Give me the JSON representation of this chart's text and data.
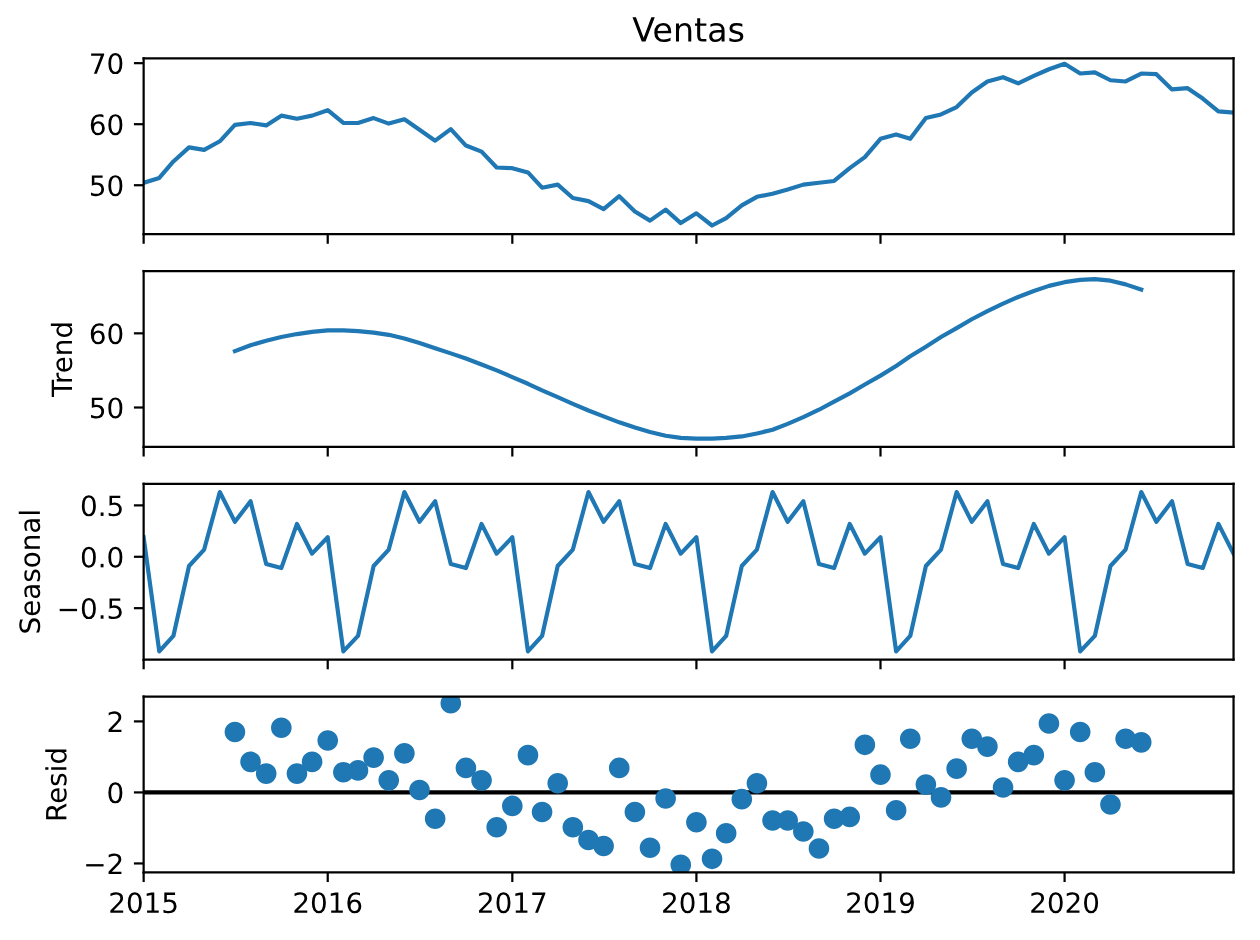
{
  "chart_data": [
    {
      "type": "line",
      "title": "Ventas",
      "xlim": [
        "2015-01",
        "2020-12"
      ],
      "xticks": [
        {
          "value": "2015",
          "label": null
        },
        {
          "value": "2016",
          "label": null
        },
        {
          "value": "2017",
          "label": null
        },
        {
          "value": "2018",
          "label": null
        },
        {
          "value": "2019",
          "label": null
        },
        {
          "value": "2020",
          "label": null
        }
      ],
      "ylim": [
        42.0,
        70.8
      ],
      "yticks": [
        50,
        60,
        70
      ],
      "tick_labels": "y",
      "series": [
        {
          "color": "#1f77b4",
          "x": [
            "2015-01",
            "2015-02",
            "2015-03",
            "2015-04",
            "2015-05",
            "2015-06",
            "2015-07",
            "2015-08",
            "2015-09",
            "2015-10",
            "2015-11",
            "2015-12",
            "2016-01",
            "2016-02",
            "2016-03",
            "2016-04",
            "2016-05",
            "2016-06",
            "2016-07",
            "2016-08",
            "2016-09",
            "2016-10",
            "2016-11",
            "2016-12",
            "2017-01",
            "2017-02",
            "2017-03",
            "2017-04",
            "2017-05",
            "2017-06",
            "2017-07",
            "2017-08",
            "2017-09",
            "2017-10",
            "2017-11",
            "2017-12",
            "2018-01",
            "2018-02",
            "2018-03",
            "2018-04",
            "2018-05",
            "2018-06",
            "2018-07",
            "2018-08",
            "2018-09",
            "2018-10",
            "2018-11",
            "2018-12",
            "2019-01",
            "2019-02",
            "2019-03",
            "2019-04",
            "2019-05",
            "2019-06",
            "2019-07",
            "2019-08",
            "2019-09",
            "2019-10",
            "2019-11",
            "2019-12",
            "2020-01",
            "2020-02",
            "2020-03",
            "2020-04",
            "2020-05",
            "2020-06",
            "2020-07",
            "2020-08",
            "2020-09",
            "2020-10",
            "2020-11",
            "2020-12"
          ],
          "values": [
            50.4,
            51.2,
            53.9,
            56.2,
            55.8,
            57.2,
            59.9,
            60.2,
            59.8,
            61.4,
            60.9,
            61.4,
            62.3,
            60.2,
            60.2,
            61.0,
            60.1,
            60.8,
            59.1,
            57.3,
            59.2,
            56.5,
            55.5,
            52.9,
            52.8,
            52.1,
            49.6,
            50.1,
            47.9,
            47.4,
            46.1,
            48.2,
            45.7,
            44.2,
            46.0,
            43.8,
            45.4,
            43.4,
            44.6,
            46.7,
            48.1,
            48.6,
            49.3,
            50.1,
            50.4,
            50.7,
            52.8,
            54.6,
            57.6,
            58.3,
            57.6,
            61.0,
            61.6,
            62.8,
            65.2,
            67.0,
            67.7,
            66.7,
            67.9,
            69.0,
            69.9,
            68.3,
            68.5,
            67.2,
            67.0,
            68.3,
            68.2,
            65.7,
            65.9,
            64.2,
            62.1,
            61.9
          ]
        }
      ]
    },
    {
      "type": "line",
      "ylabel": "Trend",
      "xlim": [
        "2015-01",
        "2020-12"
      ],
      "xticks": [
        {
          "value": "2015",
          "label": null
        },
        {
          "value": "2016",
          "label": null
        },
        {
          "value": "2017",
          "label": null
        },
        {
          "value": "2018",
          "label": null
        },
        {
          "value": "2019",
          "label": null
        },
        {
          "value": "2020",
          "label": null
        }
      ],
      "ylim": [
        44.7,
        68.4
      ],
      "yticks": [
        50,
        60
      ],
      "tick_labels": "y",
      "series": [
        {
          "color": "#1f77b4",
          "x": [
            "2015-07",
            "2015-08",
            "2015-09",
            "2015-10",
            "2015-11",
            "2015-12",
            "2016-01",
            "2016-02",
            "2016-03",
            "2016-04",
            "2016-05",
            "2016-06",
            "2016-07",
            "2016-08",
            "2016-09",
            "2016-10",
            "2016-11",
            "2016-12",
            "2017-01",
            "2017-02",
            "2017-03",
            "2017-04",
            "2017-05",
            "2017-06",
            "2017-07",
            "2017-08",
            "2017-09",
            "2017-10",
            "2017-11",
            "2017-12",
            "2018-01",
            "2018-02",
            "2018-03",
            "2018-04",
            "2018-05",
            "2018-06",
            "2018-07",
            "2018-08",
            "2018-09",
            "2018-10",
            "2018-11",
            "2018-12",
            "2019-01",
            "2019-02",
            "2019-03",
            "2019-04",
            "2019-05",
            "2019-06",
            "2019-07",
            "2019-08",
            "2019-09",
            "2019-10",
            "2019-11",
            "2019-12",
            "2020-01",
            "2020-02",
            "2020-03",
            "2020-04",
            "2020-05",
            "2020-06"
          ],
          "values": [
            57.6,
            58.4,
            59.0,
            59.5,
            59.9,
            60.2,
            60.4,
            60.4,
            60.3,
            60.1,
            59.8,
            59.3,
            58.7,
            58.0,
            57.3,
            56.6,
            55.8,
            55.0,
            54.1,
            53.2,
            52.3,
            51.4,
            50.5,
            49.6,
            48.8,
            48.0,
            47.3,
            46.7,
            46.2,
            45.9,
            45.8,
            45.8,
            45.9,
            46.1,
            46.5,
            47.0,
            47.8,
            48.7,
            49.7,
            50.8,
            51.9,
            53.1,
            54.3,
            55.6,
            56.9,
            58.2,
            59.5,
            60.7,
            61.9,
            63.0,
            64.0,
            64.9,
            65.7,
            66.4,
            66.9,
            67.2,
            67.3,
            67.1,
            66.6,
            65.9
          ]
        }
      ]
    },
    {
      "type": "line",
      "ylabel": "Seasonal",
      "xlim": [
        "2015-01",
        "2020-12"
      ],
      "xticks": [
        {
          "value": "2015",
          "label": null
        },
        {
          "value": "2016",
          "label": null
        },
        {
          "value": "2017",
          "label": null
        },
        {
          "value": "2018",
          "label": null
        },
        {
          "value": "2019",
          "label": null
        },
        {
          "value": "2020",
          "label": null
        }
      ],
      "ylim": [
        -1.0,
        0.71
      ],
      "yticks": [
        {
          "value": -0.5,
          "label": "−0.5"
        },
        {
          "value": 0.0,
          "label": "0.0"
        },
        0.5
      ],
      "tick_labels": "y",
      "series": [
        {
          "color": "#1f77b4",
          "x": [
            "2015-01",
            "2015-02",
            "2015-03",
            "2015-04",
            "2015-05",
            "2015-06",
            "2015-07",
            "2015-08",
            "2015-09",
            "2015-10",
            "2015-11",
            "2015-12",
            "2016-01",
            "2016-02",
            "2016-03",
            "2016-04",
            "2016-05",
            "2016-06",
            "2016-07",
            "2016-08",
            "2016-09",
            "2016-10",
            "2016-11",
            "2016-12",
            "2017-01",
            "2017-02",
            "2017-03",
            "2017-04",
            "2017-05",
            "2017-06",
            "2017-07",
            "2017-08",
            "2017-09",
            "2017-10",
            "2017-11",
            "2017-12",
            "2018-01",
            "2018-02",
            "2018-03",
            "2018-04",
            "2018-05",
            "2018-06",
            "2018-07",
            "2018-08",
            "2018-09",
            "2018-10",
            "2018-11",
            "2018-12",
            "2019-01",
            "2019-02",
            "2019-03",
            "2019-04",
            "2019-05",
            "2019-06",
            "2019-07",
            "2019-08",
            "2019-09",
            "2019-10",
            "2019-11",
            "2019-12",
            "2020-01",
            "2020-02",
            "2020-03",
            "2020-04",
            "2020-05",
            "2020-06",
            "2020-07",
            "2020-08",
            "2020-09",
            "2020-10",
            "2020-11",
            "2020-12"
          ],
          "values": [
            0.19,
            -0.92,
            -0.77,
            -0.09,
            0.07,
            0.63,
            0.34,
            0.54,
            -0.07,
            -0.11,
            0.32,
            0.03,
            0.19,
            -0.92,
            -0.77,
            -0.09,
            0.07,
            0.63,
            0.34,
            0.54,
            -0.07,
            -0.11,
            0.32,
            0.03,
            0.19,
            -0.92,
            -0.77,
            -0.09,
            0.07,
            0.63,
            0.34,
            0.54,
            -0.07,
            -0.11,
            0.32,
            0.03,
            0.19,
            -0.92,
            -0.77,
            -0.09,
            0.07,
            0.63,
            0.34,
            0.54,
            -0.07,
            -0.11,
            0.32,
            0.03,
            0.19,
            -0.92,
            -0.77,
            -0.09,
            0.07,
            0.63,
            0.34,
            0.54,
            -0.07,
            -0.11,
            0.32,
            0.03,
            0.19,
            -0.92,
            -0.77,
            -0.09,
            0.07,
            0.63,
            0.34,
            0.54,
            -0.07,
            -0.11,
            0.32,
            0.03
          ]
        }
      ]
    },
    {
      "type": "scatter",
      "ylabel": "Resid",
      "marker": "circle",
      "xlim": [
        "2015-01",
        "2020-12"
      ],
      "xticks": [
        {
          "value": "2015",
          "label": "2015"
        },
        {
          "value": "2016",
          "label": "2016"
        },
        {
          "value": "2017",
          "label": "2017"
        },
        {
          "value": "2018",
          "label": "2018"
        },
        {
          "value": "2019",
          "label": "2019"
        },
        {
          "value": "2020",
          "label": "2020"
        }
      ],
      "ylim": [
        -2.25,
        2.7
      ],
      "yticks": [
        {
          "value": -2,
          "label": "−2"
        },
        0,
        2
      ],
      "ref_lines": [
        {
          "axis": "y",
          "value": 0,
          "color": "#000000"
        }
      ],
      "series": [
        {
          "color": "#1f77b4",
          "x": [
            "2015-07",
            "2015-08",
            "2015-09",
            "2015-10",
            "2015-11",
            "2015-12",
            "2016-01",
            "2016-02",
            "2016-03",
            "2016-04",
            "2016-05",
            "2016-06",
            "2016-07",
            "2016-08",
            "2016-09",
            "2016-10",
            "2016-11",
            "2016-12",
            "2017-01",
            "2017-02",
            "2017-03",
            "2017-04",
            "2017-05",
            "2017-06",
            "2017-07",
            "2017-08",
            "2017-09",
            "2017-10",
            "2017-11",
            "2017-12",
            "2018-01",
            "2018-02",
            "2018-03",
            "2018-04",
            "2018-05",
            "2018-06",
            "2018-07",
            "2018-08",
            "2018-09",
            "2018-10",
            "2018-11",
            "2018-12",
            "2019-01",
            "2019-02",
            "2019-03",
            "2019-04",
            "2019-05",
            "2019-06",
            "2019-07",
            "2019-08",
            "2019-09",
            "2019-10",
            "2019-11",
            "2019-12",
            "2020-01",
            "2020-02",
            "2020-03",
            "2020-04",
            "2020-05",
            "2020-06"
          ],
          "values": [
            1.7,
            0.86,
            0.53,
            1.82,
            0.53,
            0.86,
            1.46,
            0.57,
            0.62,
            0.98,
            0.34,
            1.1,
            0.07,
            -0.74,
            2.51,
            0.69,
            0.34,
            -0.98,
            -0.38,
            1.05,
            -0.55,
            0.26,
            -0.98,
            -1.34,
            -1.51,
            0.69,
            -0.55,
            -1.56,
            -0.17,
            -2.04,
            -0.84,
            -1.87,
            -1.15,
            -0.19,
            0.26,
            -0.79,
            -0.79,
            -1.1,
            -1.58,
            -0.74,
            -0.69,
            1.34,
            0.5,
            -0.5,
            1.51,
            0.22,
            -0.14,
            0.67,
            1.51,
            1.29,
            0.14,
            0.86,
            1.05,
            1.94,
            0.34,
            1.7,
            0.57,
            -0.34,
            1.51,
            1.41
          ]
        }
      ]
    }
  ]
}
